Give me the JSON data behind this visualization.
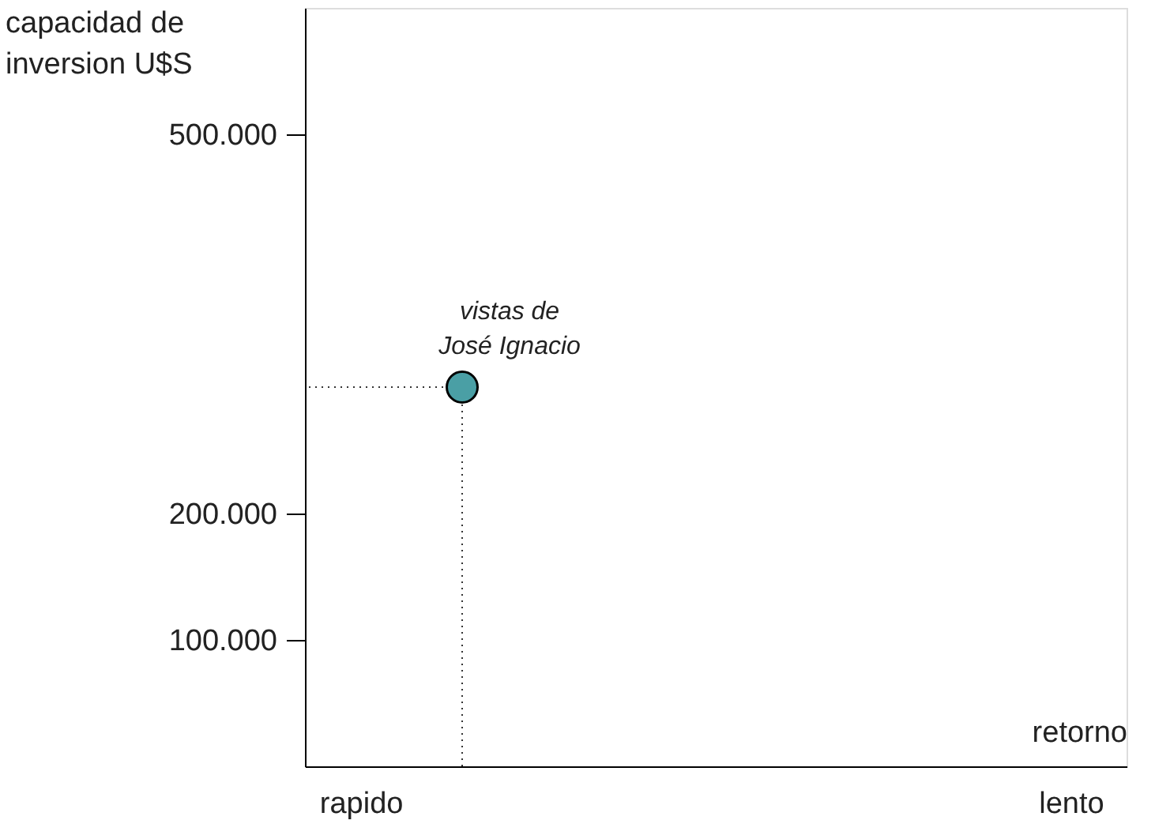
{
  "chart_data": {
    "type": "scatter",
    "xlabel": "retorno",
    "ylabel": "capacidad de inversion U$S",
    "categories": [
      "rapido",
      null,
      null,
      null,
      null,
      null,
      null,
      "lento"
    ],
    "series": [
      {
        "color": "#4a9fa5",
        "values": [
          null,
          300000,
          null,
          null,
          null,
          null,
          null,
          null
        ]
      }
    ],
    "marker": "circle",
    "ylim": [
      0,
      600000
    ],
    "yticks": [
      {
        "value": 100000,
        "label": "100.000"
      },
      {
        "value": 200000,
        "label": "200.000"
      },
      {
        "value": 500000,
        "label": "500.000"
      }
    ],
    "ref_lines": [
      {
        "axis": "y",
        "value": 300000,
        "line_style": "dotted"
      }
    ],
    "annotations": [
      "vistas de José Ignacio"
    ]
  }
}
